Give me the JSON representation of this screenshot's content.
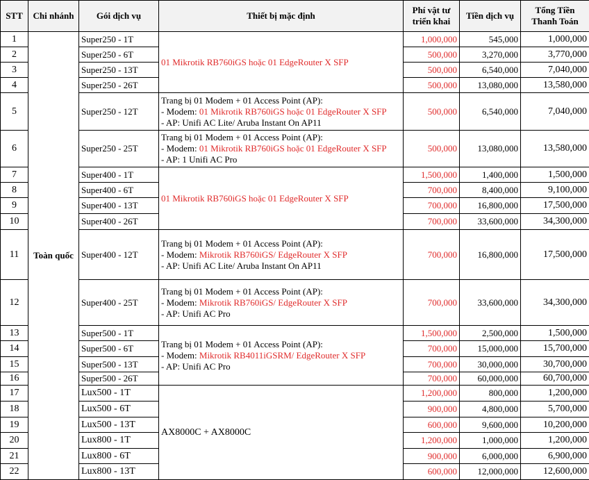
{
  "table": {
    "header": [
      "STT",
      "Chi nhánh",
      "Gói dịch vụ",
      "Thiết bị mặc định",
      "Phí vật tư triển khai",
      "Tiền dịch vụ",
      "Tổng Tiền Thanh Toán"
    ],
    "branch": "Toàn quốc",
    "fee_color": "#e02b2b",
    "rows": [
      [
        "1",
        "Super250 - 1T",
        "1,000,000",
        "545,000",
        "1,000,000"
      ],
      [
        "2",
        "Super250 - 6T",
        "500,000",
        "3,270,000",
        "3,770,000"
      ],
      [
        "3",
        "Super250 - 13T",
        "500,000",
        "6,540,000",
        "7,040,000"
      ],
      [
        "4",
        "Super250 - 26T",
        "500,000",
        "13,080,000",
        "13,580,000"
      ],
      [
        "5",
        "Super250 - 12T",
        "500,000",
        "6,540,000",
        "7,040,000"
      ],
      [
        "6",
        "Super250 - 25T",
        "500,000",
        "13,080,000",
        "13,580,000"
      ],
      [
        "7",
        "Super400 - 1T",
        "1,500,000",
        "1,400,000",
        "1,500,000"
      ],
      [
        "8",
        "Super400 - 6T",
        "700,000",
        "8,400,000",
        "9,100,000"
      ],
      [
        "9",
        "Super400 - 13T",
        "700,000",
        "16,800,000",
        "17,500,000"
      ],
      [
        "10",
        "Super400 - 26T",
        "700,000",
        "33,600,000",
        "34,300,000"
      ],
      [
        "11",
        "Super400 - 12T",
        "700,000",
        "16,800,000",
        "17,500,000"
      ],
      [
        "12",
        "Super400 - 25T",
        "700,000",
        "33,600,000",
        "34,300,000"
      ],
      [
        "13",
        "Super500 - 1T",
        "1,500,000",
        "2,500,000",
        "1,500,000"
      ],
      [
        "14",
        "Super500 - 6T",
        "700,000",
        "15,000,000",
        "15,700,000"
      ],
      [
        "15",
        "Super500 - 13T",
        "700,000",
        "30,000,000",
        "30,700,000"
      ],
      [
        "16",
        "Super500 - 26T",
        "700,000",
        "60,000,000",
        "60,700,000"
      ],
      [
        "17",
        "Lux500 - 1T",
        "1,200,000",
        "800,000",
        "1,200,000"
      ],
      [
        "18",
        "Lux500 - 6T",
        "900,000",
        "4,800,000",
        "5,700,000"
      ],
      [
        "19",
        "Lux500 - 13T",
        "600,000",
        "9,600,000",
        "10,200,000"
      ],
      [
        "20",
        "Lux800 - 1T",
        "1,200,000",
        "1,000,000",
        "1,200,000"
      ],
      [
        "21",
        "Lux800 - 6T",
        "900,000",
        "6,000,000",
        "6,900,000"
      ],
      [
        "22",
        "Lux800 - 13T",
        "600,000",
        "12,000,000",
        "12,600,000"
      ]
    ],
    "devices": [
      {
        "lines": [
          [
            {
              "text": "01 Mikrotik RB760iGS hoặc 01 EdgeRouter X SFP",
              "color": "#e02b2b"
            }
          ]
        ]
      },
      {
        "lines": [
          [
            {
              "text": "Trang bị 01 Modem + 01 Access Point (AP):"
            }
          ],
          [
            {
              "text": "- Modem: "
            },
            {
              "text": "01 Mikrotik RB760iGS hoặc 01 EdgeRouter X SFP",
              "color": "#e02b2b"
            }
          ],
          [
            {
              "text": "- AP: Unifi AC Lite/ Aruba Instant On AP11"
            }
          ]
        ]
      },
      {
        "lines": [
          [
            {
              "text": "Trang bị 01 Modem + 01 Access Point (AP):"
            }
          ],
          [
            {
              "text": "- Modem: "
            },
            {
              "text": "01 Mikrotik RB760iGS hoặc 01 EdgeRouter X SFP",
              "color": "#e02b2b"
            }
          ],
          [
            {
              "text": "- AP: 1 Unifi AC Pro"
            }
          ]
        ]
      },
      {
        "lines": [
          [
            {
              "text": "01 Mikrotik RB760iGS hoặc 01 EdgeRouter X SFP",
              "color": "#e02b2b"
            }
          ]
        ]
      },
      {
        "lines": [
          [
            {
              "text": "Trang bị 01 Modem + 01 Access Point (AP):"
            }
          ],
          [
            {
              "text": "- Modem: "
            },
            {
              "text": "Mikrotik RB760iGS/ EdgeRouter X SFP",
              "color": "#e02b2b"
            }
          ],
          [
            {
              "text": "- AP: Unifi AC Lite/ Aruba Instant On AP11"
            }
          ]
        ]
      },
      {
        "lines": [
          [
            {
              "text": "Trang bị 01 Modem + 01 Access Point (AP):"
            }
          ],
          [
            {
              "text": "- Modem: "
            },
            {
              "text": "Mikrotik RB760iGS/ EdgeRouter X SFP",
              "color": "#e02b2b"
            }
          ],
          [
            {
              "text": "- AP: Unifi AC Pro"
            }
          ]
        ]
      },
      {
        "lines": [
          [
            {
              "text": "Trang bị 01 Modem + 01 Access Point (AP):"
            }
          ],
          [
            {
              "text": "- Modem: "
            },
            {
              "text": "Mikrotik RB4011iGSRM/ EdgeRouter X SFP",
              "color": "#e02b2b"
            }
          ],
          [
            {
              "text": "- AP: Unifi AC Pro"
            }
          ]
        ]
      },
      {
        "lines": [
          [
            {
              "text": "AX8000C + AX8000C"
            }
          ]
        ]
      }
    ]
  }
}
